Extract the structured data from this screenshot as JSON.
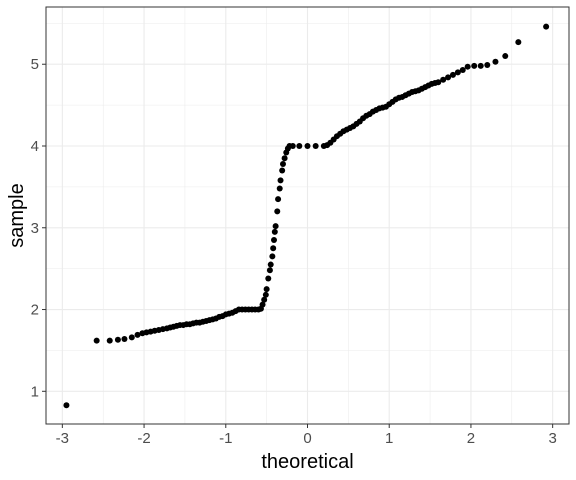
{
  "chart_data": {
    "type": "scatter",
    "title": "",
    "xlabel": "theoretical",
    "ylabel": "sample",
    "xlim": [
      -3.2,
      3.2
    ],
    "ylim": [
      0.6,
      5.7
    ],
    "x_ticks": [
      -3,
      -2,
      -1,
      0,
      1,
      2,
      3
    ],
    "x_tick_labels": [
      "-3",
      "-2",
      "-1",
      "0",
      "1",
      "2",
      "3"
    ],
    "y_ticks": [
      1,
      2,
      3,
      4,
      5
    ],
    "y_tick_labels": [
      "1",
      "2",
      "3",
      "4",
      "5"
    ],
    "grid": true,
    "legend": "none",
    "point_color": "#000000",
    "grid_color": "#ebebeb",
    "panel_border_color": "#333333",
    "series": [
      {
        "points": [
          [
            -2.95,
            0.83
          ],
          [
            -2.58,
            1.62
          ],
          [
            -2.42,
            1.62
          ],
          [
            -2.32,
            1.63
          ],
          [
            -2.24,
            1.64
          ],
          [
            -2.15,
            1.66
          ],
          [
            -2.08,
            1.69
          ],
          [
            -2.02,
            1.71
          ],
          [
            -1.97,
            1.72
          ],
          [
            -1.92,
            1.73
          ],
          [
            -1.87,
            1.74
          ],
          [
            -1.82,
            1.75
          ],
          [
            -1.77,
            1.76
          ],
          [
            -1.72,
            1.77
          ],
          [
            -1.68,
            1.78
          ],
          [
            -1.64,
            1.79
          ],
          [
            -1.6,
            1.8
          ],
          [
            -1.56,
            1.81
          ],
          [
            -1.52,
            1.81
          ],
          [
            -1.48,
            1.82
          ],
          [
            -1.44,
            1.82
          ],
          [
            -1.4,
            1.83
          ],
          [
            -1.36,
            1.84
          ],
          [
            -1.32,
            1.84
          ],
          [
            -1.28,
            1.85
          ],
          [
            -1.24,
            1.86
          ],
          [
            -1.2,
            1.87
          ],
          [
            -1.16,
            1.88
          ],
          [
            -1.12,
            1.89
          ],
          [
            -1.08,
            1.91
          ],
          [
            -1.04,
            1.92
          ],
          [
            -1.0,
            1.94
          ],
          [
            -0.96,
            1.95
          ],
          [
            -0.92,
            1.96
          ],
          [
            -0.88,
            1.98
          ],
          [
            -0.84,
            2.0
          ],
          [
            -0.8,
            2.0
          ],
          [
            -0.76,
            2.0
          ],
          [
            -0.72,
            2.0
          ],
          [
            -0.68,
            2.0
          ],
          [
            -0.64,
            2.0
          ],
          [
            -0.6,
            2.0
          ],
          [
            -0.57,
            2.01
          ],
          [
            -0.55,
            2.06
          ],
          [
            -0.53,
            2.12
          ],
          [
            -0.51,
            2.18
          ],
          [
            -0.5,
            2.25
          ],
          [
            -0.48,
            2.38
          ],
          [
            -0.46,
            2.48
          ],
          [
            -0.45,
            2.55
          ],
          [
            -0.43,
            2.65
          ],
          [
            -0.42,
            2.75
          ],
          [
            -0.41,
            2.85
          ],
          [
            -0.4,
            2.95
          ],
          [
            -0.39,
            3.02
          ],
          [
            -0.37,
            3.2
          ],
          [
            -0.36,
            3.35
          ],
          [
            -0.34,
            3.48
          ],
          [
            -0.33,
            3.58
          ],
          [
            -0.31,
            3.7
          ],
          [
            -0.3,
            3.78
          ],
          [
            -0.28,
            3.85
          ],
          [
            -0.26,
            3.92
          ],
          [
            -0.24,
            3.97
          ],
          [
            -0.22,
            4.0
          ],
          [
            -0.18,
            4.0
          ],
          [
            -0.1,
            4.0
          ],
          [
            0.0,
            4.0
          ],
          [
            0.1,
            4.0
          ],
          [
            0.2,
            4.0
          ],
          [
            0.24,
            4.01
          ],
          [
            0.28,
            4.04
          ],
          [
            0.32,
            4.08
          ],
          [
            0.36,
            4.12
          ],
          [
            0.4,
            4.15
          ],
          [
            0.44,
            4.18
          ],
          [
            0.48,
            4.2
          ],
          [
            0.52,
            4.22
          ],
          [
            0.56,
            4.24
          ],
          [
            0.6,
            4.27
          ],
          [
            0.64,
            4.3
          ],
          [
            0.68,
            4.34
          ],
          [
            0.72,
            4.37
          ],
          [
            0.76,
            4.39
          ],
          [
            0.8,
            4.42
          ],
          [
            0.84,
            4.44
          ],
          [
            0.88,
            4.46
          ],
          [
            0.92,
            4.47
          ],
          [
            0.96,
            4.48
          ],
          [
            1.0,
            4.51
          ],
          [
            1.04,
            4.54
          ],
          [
            1.08,
            4.57
          ],
          [
            1.12,
            4.59
          ],
          [
            1.16,
            4.6
          ],
          [
            1.2,
            4.62
          ],
          [
            1.24,
            4.64
          ],
          [
            1.28,
            4.66
          ],
          [
            1.32,
            4.67
          ],
          [
            1.36,
            4.68
          ],
          [
            1.4,
            4.7
          ],
          [
            1.44,
            4.72
          ],
          [
            1.48,
            4.74
          ],
          [
            1.52,
            4.76
          ],
          [
            1.56,
            4.77
          ],
          [
            1.6,
            4.78
          ],
          [
            1.66,
            4.81
          ],
          [
            1.72,
            4.84
          ],
          [
            1.78,
            4.87
          ],
          [
            1.84,
            4.9
          ],
          [
            1.9,
            4.93
          ],
          [
            1.96,
            4.97
          ],
          [
            2.04,
            4.98
          ],
          [
            2.12,
            4.98
          ],
          [
            2.2,
            4.99
          ],
          [
            2.3,
            5.03
          ],
          [
            2.42,
            5.1
          ],
          [
            2.58,
            5.27
          ],
          [
            2.92,
            5.46
          ]
        ]
      }
    ]
  }
}
